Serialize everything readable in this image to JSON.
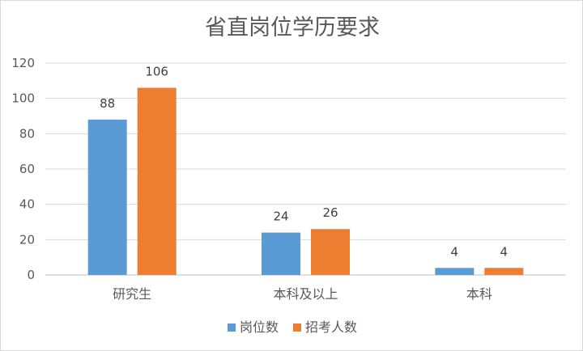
{
  "chart_data": {
    "type": "bar",
    "title": "省直岗位学历要求",
    "xlabel": "",
    "ylabel": "",
    "categories": [
      "研究生",
      "本科及以上",
      "本科"
    ],
    "series": [
      {
        "name": "岗位数",
        "values": [
          88,
          24,
          4
        ],
        "color": "#5b9bd5"
      },
      {
        "name": "招考人数",
        "values": [
          106,
          26,
          4
        ],
        "color": "#ed7d31"
      }
    ],
    "ylim": [
      0,
      120
    ],
    "yticks": [
      0,
      20,
      40,
      60,
      80,
      100,
      120
    ],
    "grid": true,
    "legend": "bottom",
    "data_labels": true
  }
}
